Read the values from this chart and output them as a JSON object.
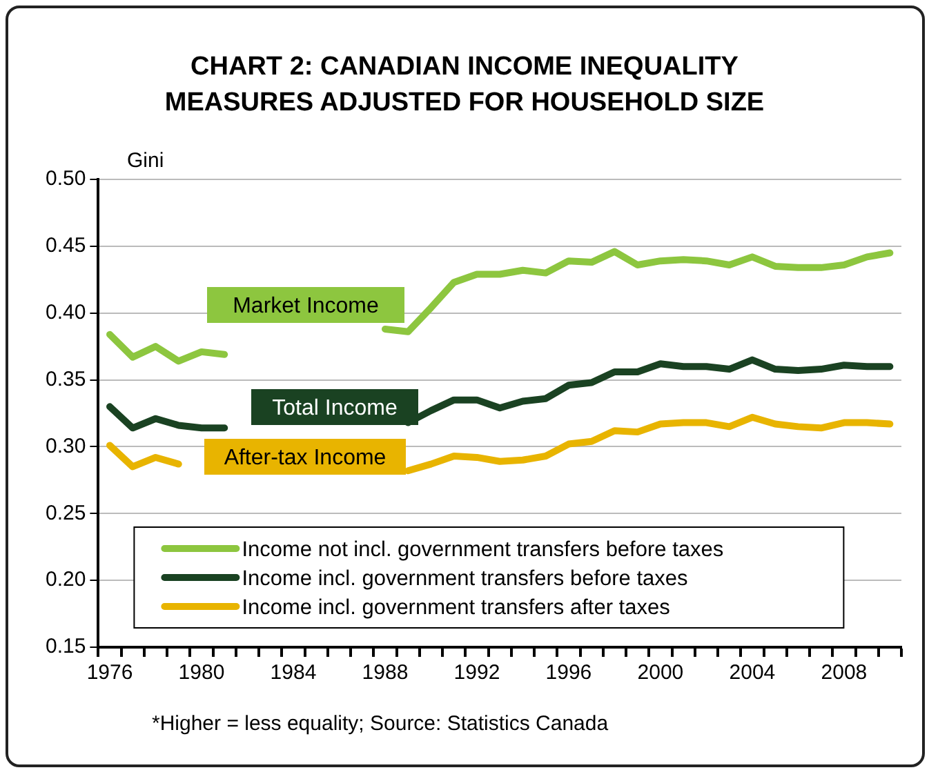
{
  "chart_data": {
    "type": "line",
    "title": "CHART 2: CANADIAN INCOME INEQUALITY\nMEASURES ADJUSTED FOR HOUSEHOLD SIZE",
    "ylabel": "Gini",
    "categories": [
      "1976",
      null,
      null,
      null,
      "1980",
      null,
      null,
      null,
      "1984",
      null,
      null,
      null,
      "1988",
      null,
      null,
      null,
      "1992",
      null,
      null,
      null,
      "1996",
      null,
      null,
      null,
      "2000",
      null,
      null,
      null,
      "2004",
      null,
      null,
      null,
      "2008",
      null,
      null
    ],
    "series": [
      {
        "name": "Income not incl. government transfers before taxes",
        "color": "#8dc63f",
        "values": [
          0.384,
          0.367,
          0.375,
          0.364,
          0.371,
          0.369,
          null,
          null,
          null,
          null,
          null,
          null,
          0.388,
          0.386,
          0.404,
          0.423,
          0.429,
          0.429,
          0.432,
          0.43,
          0.439,
          0.438,
          0.446,
          0.436,
          0.439,
          0.44,
          0.439,
          0.436,
          0.442,
          0.435,
          0.434,
          0.434,
          0.436,
          0.442,
          0.445
        ]
      },
      {
        "name": "Income incl. government transfers before taxes",
        "color": "#1a4222",
        "values": [
          0.33,
          0.314,
          0.321,
          0.316,
          0.314,
          0.314,
          null,
          null,
          null,
          null,
          null,
          null,
          null,
          0.318,
          0.327,
          0.335,
          0.335,
          0.329,
          0.334,
          0.336,
          0.346,
          0.348,
          0.356,
          0.356,
          0.362,
          0.36,
          0.36,
          0.358,
          0.365,
          0.358,
          0.357,
          0.358,
          0.361,
          0.36,
          0.36
        ]
      },
      {
        "name": "Income incl. government transfers after taxes",
        "color": "#e8b400",
        "values": [
          0.301,
          0.285,
          0.292,
          0.287,
          null,
          null,
          null,
          null,
          null,
          null,
          null,
          null,
          null,
          0.282,
          0.287,
          0.293,
          0.292,
          0.289,
          0.29,
          0.293,
          0.302,
          0.304,
          0.312,
          0.311,
          0.317,
          0.318,
          0.318,
          0.315,
          0.322,
          0.317,
          0.315,
          0.314,
          0.318,
          0.318,
          0.317
        ]
      }
    ],
    "ylim": [
      0.15,
      0.5
    ],
    "yticks": [
      {
        "value": 0.15,
        "label": "0.15"
      },
      {
        "value": 0.2,
        "label": "0.20"
      },
      {
        "value": 0.25,
        "label": "0.25"
      },
      {
        "value": 0.3,
        "label": "0.30"
      },
      {
        "value": 0.35,
        "label": "0.35"
      },
      {
        "value": 0.4,
        "label": "0.40"
      },
      {
        "value": 0.45,
        "label": "0.45"
      },
      {
        "value": 0.5,
        "label": "0.50"
      }
    ],
    "grid": "y",
    "legend": "bottom",
    "marker": "none",
    "line_style": "solid",
    "annotations": [
      "Market Income",
      "Total Income",
      "After-tax Income",
      "*Higher = less equality; Source: Statistics Canada"
    ]
  }
}
